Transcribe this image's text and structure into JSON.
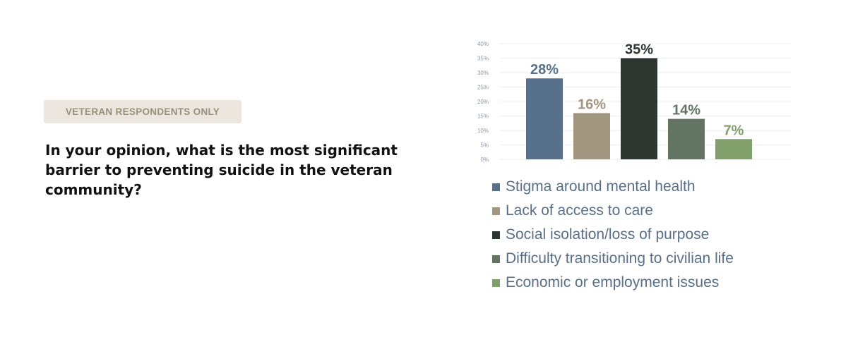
{
  "badge": "VETERAN RESPONDENTS ONLY",
  "question": "In your opinion, what is the most significant barrier to preventing suicide in the veteran community?",
  "chart_data": {
    "type": "bar",
    "title": "",
    "xlabel": "",
    "ylabel": "",
    "ylim": [
      0,
      40
    ],
    "yticks": [
      "0%",
      "5%",
      "10%",
      "15%",
      "20%",
      "25%",
      "30%",
      "35%",
      "40%"
    ],
    "grid": true,
    "legend_position": "bottom",
    "categories": [
      "Stigma around mental health",
      "Lack of access to care",
      "Social isolation/loss of purpose",
      "Difficulty transitioning to civilian life",
      "Economic or employment issues"
    ],
    "values": [
      28,
      16,
      35,
      14,
      7
    ],
    "value_labels": [
      "28%",
      "16%",
      "35%",
      "14%",
      "7%"
    ],
    "colors": [
      "#57708b",
      "#a39680",
      "#2d362f",
      "#637463",
      "#82a06b"
    ],
    "value_label_colors": [
      "#57708b",
      "#a39680",
      "#2d362f",
      "#637463",
      "#82a06b"
    ]
  }
}
